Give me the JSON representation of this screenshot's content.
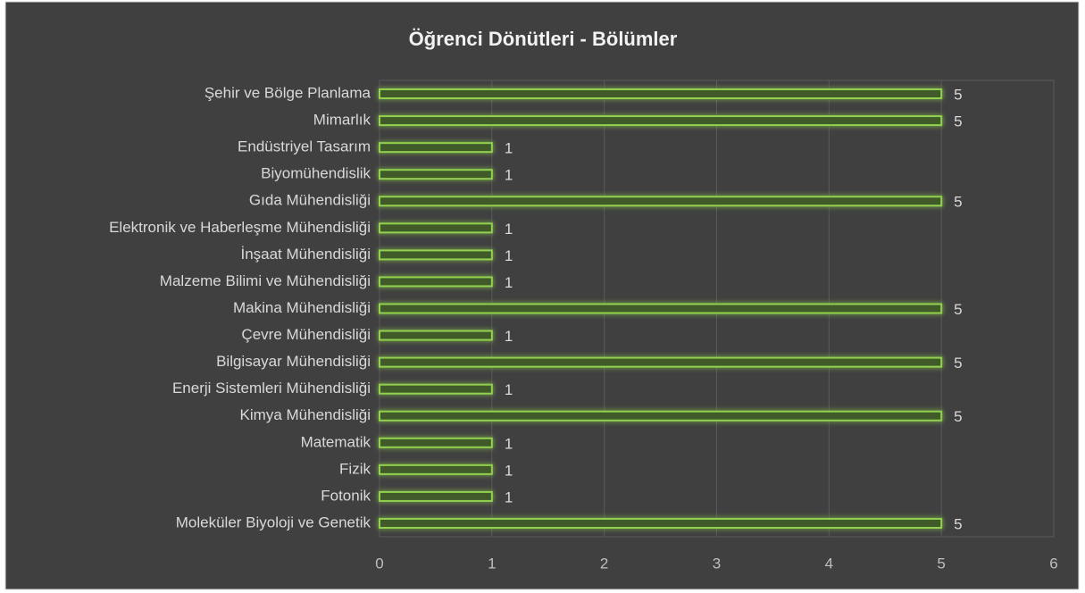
{
  "chart_data": {
    "type": "bar",
    "orientation": "horizontal",
    "title": "Öğrenci Dönütleri - Bölümler",
    "categories": [
      "Şehir ve Bölge Planlama",
      "Mimarlık",
      "Endüstriyel Tasarım",
      "Biyomühendislik",
      "Gıda Mühendisliği",
      "Elektronik ve Haberleşme Mühendisliği",
      "İnşaat Mühendisliği",
      "Malzeme Bilimi ve Mühendisliği",
      "Makina Mühendisliği",
      "Çevre Mühendisliği",
      "Bilgisayar Mühendisliği",
      "Enerji Sistemleri Mühendisliği",
      "Kimya Mühendisliği",
      "Matematik",
      "Fizik",
      "Fotonik",
      "Moleküler Biyoloji ve Genetik"
    ],
    "values": [
      5,
      5,
      1,
      1,
      5,
      1,
      1,
      1,
      5,
      1,
      5,
      1,
      5,
      1,
      1,
      1,
      5
    ],
    "color": "#92d050",
    "xlim": [
      0,
      6
    ],
    "xticks": [
      0,
      1,
      2,
      3,
      4,
      5,
      6
    ],
    "grid": true
  }
}
